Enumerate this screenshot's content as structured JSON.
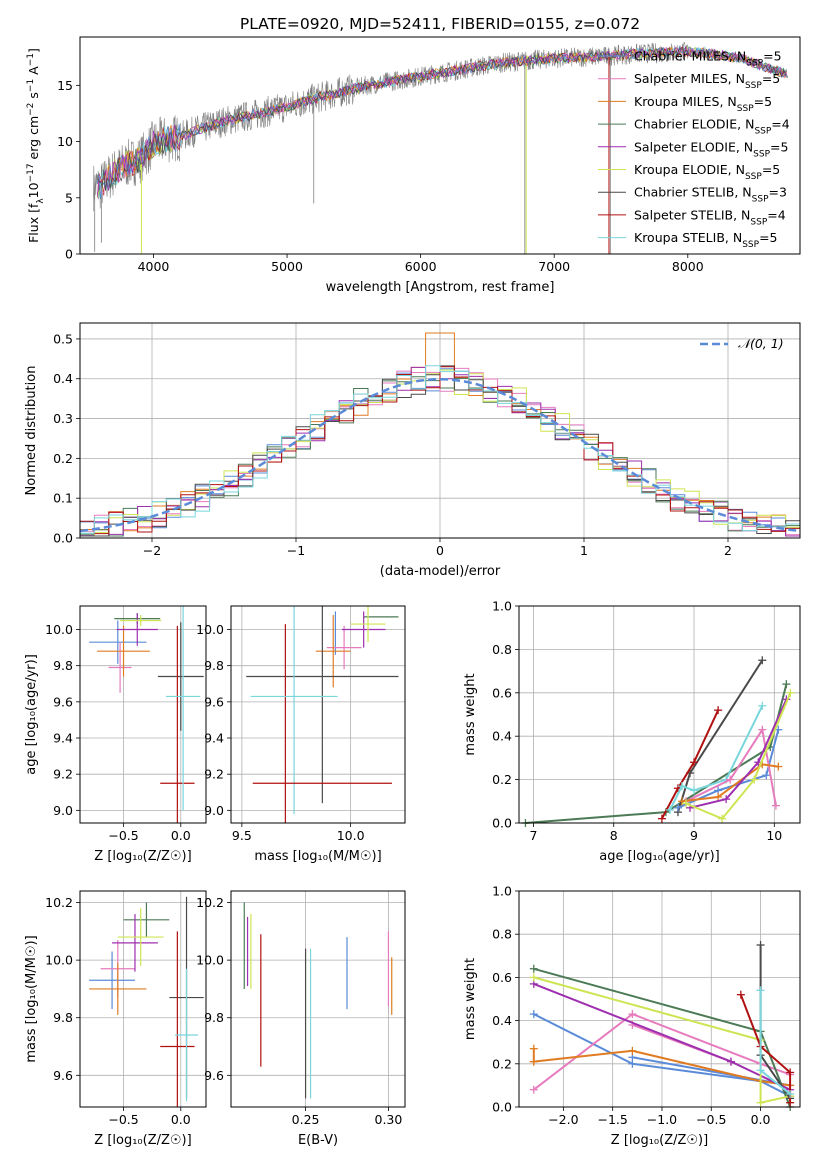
{
  "figure_title": "PLATE=0920, MJD=52411, FIBERID=0155, z=0.072",
  "colors": {
    "chabrier_miles": "#5b8bd8",
    "salpeter_miles": "#e67bbd",
    "kroupa_miles": "#e07b22",
    "chabrier_elodie": "#4b7a55",
    "salpeter_elodie": "#9e2fae",
    "kroupa_elodie": "#cfe452",
    "chabrier_stelib": "#4a4a4a",
    "salpeter_stelib": "#b01010",
    "kroupa_stelib": "#78d6dc",
    "data": "#7f7f7f",
    "normal_curve": "#5b8bd8"
  },
  "chart_data": [
    {
      "id": "spectrum",
      "type": "line",
      "xlabel": "wavelength [Angstrom, rest frame]",
      "ylabel_parts": [
        "Flux [f",
        "λ",
        "10",
        "−17",
        " erg cm",
        "−2",
        " s",
        "−1",
        " A",
        "−1",
        "]"
      ],
      "xlim": [
        3450,
        8840
      ],
      "ylim": [
        0,
        19.3
      ],
      "xticks": [
        4000,
        5000,
        6000,
        7000,
        8000
      ],
      "yticks": [
        0,
        5,
        10,
        15
      ],
      "continuum": {
        "x": [
          3550,
          3600,
          3700,
          3800,
          3900,
          4000,
          4100,
          4200,
          4300,
          4400,
          4500,
          4600,
          4800,
          5000,
          5200,
          5400,
          5600,
          5800,
          6000,
          6200,
          6400,
          6600,
          6800,
          7000,
          7200,
          7400,
          7600,
          7800,
          8000,
          8200,
          8400,
          8600,
          8750
        ],
        "y": [
          6.0,
          6.0,
          7.2,
          8.0,
          8.4,
          9.8,
          10.2,
          10.4,
          10.9,
          11.3,
          11.7,
          12.0,
          12.5,
          13.1,
          13.8,
          14.4,
          15.0,
          15.4,
          15.8,
          16.2,
          16.6,
          17.0,
          17.2,
          17.4,
          17.5,
          17.6,
          17.8,
          17.9,
          18.0,
          17.8,
          17.4,
          16.5,
          16.0
        ]
      },
      "legend": [
        {
          "label": "Chabrier MILES, N",
          "sub": "SSP",
          "tail": "=5",
          "color_key": "chabrier_miles"
        },
        {
          "label": "Salpeter MILES, N",
          "sub": "SSP",
          "tail": "=5",
          "color_key": "salpeter_miles"
        },
        {
          "label": "Kroupa MILES, N",
          "sub": "SSP",
          "tail": "=5",
          "color_key": "kroupa_miles"
        },
        {
          "label": "Chabrier ELODIE, N",
          "sub": "SSP",
          "tail": "=4",
          "color_key": "chabrier_elodie"
        },
        {
          "label": "Salpeter ELODIE, N",
          "sub": "SSP",
          "tail": "=5",
          "color_key": "salpeter_elodie"
        },
        {
          "label": "Kroupa ELODIE, N",
          "sub": "SSP",
          "tail": "=5",
          "color_key": "kroupa_elodie"
        },
        {
          "label": "Chabrier STELIB, N",
          "sub": "SSP",
          "tail": "=3",
          "color_key": "chabrier_stelib"
        },
        {
          "label": "Salpeter STELIB, N",
          "sub": "SSP",
          "tail": "=4",
          "color_key": "salpeter_stelib"
        },
        {
          "label": "Kroupa STELIB, N",
          "sub": "SSP",
          "tail": "=5",
          "color_key": "kroupa_stelib"
        }
      ]
    },
    {
      "id": "residuals",
      "type": "line",
      "xlabel": "(data-model)/error",
      "ylabel": "Normed distribution",
      "xlim": [
        -2.5,
        2.5
      ],
      "ylim": [
        0,
        0.54
      ],
      "xticks": [
        -2,
        -1,
        0,
        1,
        2
      ],
      "yticks": [
        0.0,
        0.1,
        0.2,
        0.3,
        0.4,
        0.5
      ],
      "grid": true,
      "legend": [
        {
          "label": "𝒩(0, 1)",
          "color_key": "normal_curve",
          "style": "dashed"
        }
      ],
      "bin_width": 0.1
    },
    {
      "id": "age_vs_Z",
      "type": "scatter",
      "xlabel": "Z [log₁₀(Z/Z☉)]",
      "ylabel": "age  [log₁₀(age/yr)]",
      "xlim": [
        -0.88,
        0.22
      ],
      "ylim": [
        8.93,
        10.13
      ],
      "xticks": [
        -0.5,
        0.0
      ],
      "yticks": [
        9.0,
        9.2,
        9.4,
        9.6,
        9.8,
        10.0
      ],
      "grid": true,
      "points": [
        {
          "color_key": "chabrier_miles",
          "x": -0.55,
          "xerr": 0.25,
          "y": 9.93,
          "yerr": 0.12
        },
        {
          "color_key": "salpeter_miles",
          "x": -0.53,
          "xerr": 0.1,
          "y": 9.79,
          "yerr": 0.14
        },
        {
          "color_key": "kroupa_miles",
          "x": -0.5,
          "xerr": 0.23,
          "y": 9.88,
          "yerr": 0.14
        },
        {
          "color_key": "chabrier_elodie",
          "x": -0.38,
          "xerr": 0.2,
          "y": 10.06,
          "yerr": 0.03
        },
        {
          "color_key": "salpeter_elodie",
          "x": -0.38,
          "xerr": 0.18,
          "y": 10.0,
          "yerr": 0.09
        },
        {
          "color_key": "kroupa_elodie",
          "x": -0.35,
          "xerr": 0.18,
          "y": 10.05,
          "yerr": 0.03
        },
        {
          "color_key": "chabrier_stelib",
          "x": 0.0,
          "xerr": 0.2,
          "y": 9.74,
          "yerr": 0.3
        },
        {
          "color_key": "salpeter_stelib",
          "x": -0.03,
          "xerr": 0.15,
          "y": 9.15,
          "yerr": 0.87
        },
        {
          "color_key": "kroupa_stelib",
          "x": 0.02,
          "xerr": 0.15,
          "y": 9.63,
          "yerr": 0.63
        }
      ]
    },
    {
      "id": "age_vs_mass",
      "type": "scatter",
      "xlabel": "mass [log₁₀(M/M☉)]",
      "xlim": [
        9.45,
        10.25
      ],
      "ylim": [
        8.93,
        10.13
      ],
      "xticks": [
        9.5,
        10.0
      ],
      "yticks": [
        9.0,
        9.2,
        9.4,
        9.6,
        9.8,
        10.0
      ],
      "grid": true,
      "points": [
        {
          "color_key": "chabrier_miles",
          "x": 9.93,
          "xerr": 0.0,
          "y": 9.98,
          "yerr": 0.12
        },
        {
          "color_key": "salpeter_miles",
          "x": 9.97,
          "xerr": 0.08,
          "y": 9.9,
          "yerr": 0.12
        },
        {
          "color_key": "kroupa_miles",
          "x": 9.92,
          "xerr": 0.08,
          "y": 9.88,
          "yerr": 0.2
        },
        {
          "color_key": "chabrier_elodie",
          "x": 10.14,
          "xerr": 0.08,
          "y": 10.07,
          "yerr": 0.0
        },
        {
          "color_key": "salpeter_elodie",
          "x": 10.06,
          "xerr": 0.1,
          "y": 10.0,
          "yerr": 0.1
        },
        {
          "color_key": "kroupa_elodie",
          "x": 10.08,
          "xerr": 0.08,
          "y": 10.03,
          "yerr": 0.1
        },
        {
          "color_key": "chabrier_stelib",
          "x": 9.87,
          "xerr": 0.35,
          "y": 9.74,
          "yerr": 0.7
        },
        {
          "color_key": "salpeter_stelib",
          "x": 9.7,
          "xerr": 0.0,
          "y": 9.15,
          "yerr": 0.88
        },
        {
          "color_key": "kroupa_stelib",
          "x": 9.74,
          "xerr": 0.2,
          "y": 9.63,
          "yerr": 0.65
        },
        {
          "color_key": "salpeter_stelib",
          "x": 9.87,
          "xerr": 0.32,
          "y": 9.15,
          "yerr": 0.0
        }
      ]
    },
    {
      "id": "weight_vs_age",
      "type": "line",
      "xlabel": "age  [log₁₀(age/yr)]",
      "ylabel": "mass weight",
      "xlim": [
        6.82,
        10.32
      ],
      "ylim": [
        0,
        1.0
      ],
      "xticks": [
        7,
        8,
        9,
        10
      ],
      "yticks": [
        0.0,
        0.2,
        0.4,
        0.6,
        0.8,
        1.0
      ],
      "grid": true,
      "series": [
        {
          "color_key": "chabrier_elodie",
          "x": [
            6.9,
            8.65,
            9.95,
            10.15
          ],
          "y": [
            0.0,
            0.05,
            0.35,
            0.64
          ]
        },
        {
          "color_key": "chabrier_stelib",
          "x": [
            8.8,
            8.95,
            9.85
          ],
          "y": [
            0.05,
            0.23,
            0.75
          ]
        },
        {
          "color_key": "salpeter_stelib",
          "x": [
            8.6,
            8.8,
            9.0,
            9.3
          ],
          "y": [
            0.02,
            0.16,
            0.28,
            0.52
          ]
        },
        {
          "color_key": "kroupa_stelib",
          "x": [
            8.7,
            8.85,
            9.0,
            9.4,
            9.85
          ],
          "y": [
            0.06,
            0.17,
            0.15,
            0.2,
            0.54
          ]
        },
        {
          "color_key": "chabrier_miles",
          "x": [
            8.8,
            9.3,
            9.9,
            10.05
          ],
          "y": [
            0.07,
            0.15,
            0.22,
            0.43
          ]
        },
        {
          "color_key": "salpeter_miles",
          "x": [
            8.9,
            9.45,
            9.85,
            10.02
          ],
          "y": [
            0.1,
            0.2,
            0.43,
            0.08
          ]
        },
        {
          "color_key": "kroupa_miles",
          "x": [
            8.85,
            9.3,
            9.85,
            10.05
          ],
          "y": [
            0.1,
            0.12,
            0.27,
            0.26
          ]
        },
        {
          "color_key": "salpeter_elodie",
          "x": [
            8.95,
            9.4,
            9.8,
            10.15
          ],
          "y": [
            0.07,
            0.11,
            0.28,
            0.57
          ]
        },
        {
          "color_key": "kroupa_elodie",
          "x": [
            8.9,
            9.35,
            9.75,
            10.2
          ],
          "y": [
            0.09,
            0.02,
            0.2,
            0.6
          ]
        }
      ]
    },
    {
      "id": "mass_vs_Z",
      "type": "scatter",
      "xlabel": "Z [log₁₀(Z/Z☉)]",
      "ylabel": "mass [log₁₀(M/M☉)]",
      "xlim": [
        -0.88,
        0.22
      ],
      "ylim": [
        9.49,
        10.24
      ],
      "xticks": [
        -0.5,
        0.0
      ],
      "yticks": [
        9.6,
        9.8,
        10.0,
        10.2
      ],
      "grid": true,
      "points": [
        {
          "color_key": "chabrier_miles",
          "x": -0.6,
          "xerr": 0.2,
          "y": 9.93,
          "yerr": 0.1
        },
        {
          "color_key": "salpeter_miles",
          "x": -0.55,
          "xerr": 0.15,
          "y": 9.97,
          "yerr": 0.1
        },
        {
          "color_key": "kroupa_miles",
          "x": -0.55,
          "xerr": 0.25,
          "y": 9.9,
          "yerr": 0.09
        },
        {
          "color_key": "chabrier_elodie",
          "x": -0.3,
          "xerr": 0.2,
          "y": 10.14,
          "yerr": 0.06
        },
        {
          "color_key": "salpeter_elodie",
          "x": -0.4,
          "xerr": 0.2,
          "y": 10.06,
          "yerr": 0.1
        },
        {
          "color_key": "kroupa_elodie",
          "x": -0.35,
          "xerr": 0.2,
          "y": 10.08,
          "yerr": 0.1
        },
        {
          "color_key": "chabrier_stelib",
          "x": 0.05,
          "xerr": 0.15,
          "y": 9.87,
          "yerr": 0.35
        },
        {
          "color_key": "salpeter_stelib",
          "x": -0.03,
          "xerr": 0.15,
          "y": 9.7,
          "yerr": 0.4
        },
        {
          "color_key": "kroupa_stelib",
          "x": 0.05,
          "xerr": 0.1,
          "y": 9.74,
          "yerr": 0.23
        }
      ]
    },
    {
      "id": "mass_vs_ebv",
      "type": "scatter",
      "xlabel": "E(B-V)",
      "xlim": [
        0.205,
        0.31
      ],
      "ylim": [
        9.49,
        10.24
      ],
      "xticks": [
        0.25,
        0.3
      ],
      "yticks": [
        9.6,
        9.8,
        10.0,
        10.2
      ],
      "grid": true,
      "points": [
        {
          "color_key": "chabrier_miles",
          "x": 0.275,
          "xerr": 0.0,
          "y": 9.955,
          "yerr": 0.125
        },
        {
          "color_key": "salpeter_miles",
          "x": 0.3,
          "xerr": 0.0,
          "y": 9.97,
          "yerr": 0.13
        },
        {
          "color_key": "kroupa_miles",
          "x": 0.302,
          "xerr": 0.0,
          "y": 9.91,
          "yerr": 0.1
        },
        {
          "color_key": "chabrier_elodie",
          "x": 0.213,
          "xerr": 0.0,
          "y": 10.05,
          "yerr": 0.15
        },
        {
          "color_key": "salpeter_elodie",
          "x": 0.215,
          "xerr": 0.0,
          "y": 10.03,
          "yerr": 0.12
        },
        {
          "color_key": "kroupa_elodie",
          "x": 0.217,
          "xerr": 0.0,
          "y": 10.03,
          "yerr": 0.13
        },
        {
          "color_key": "chabrier_stelib",
          "x": 0.25,
          "xerr": 0.0,
          "y": 9.78,
          "yerr": 0.26
        },
        {
          "color_key": "salpeter_stelib",
          "x": 0.223,
          "xerr": 0.0,
          "y": 9.86,
          "yerr": 0.23
        },
        {
          "color_key": "kroupa_stelib",
          "x": 0.253,
          "xerr": 0.0,
          "y": 9.78,
          "yerr": 0.26
        }
      ]
    },
    {
      "id": "weight_vs_Z",
      "type": "line",
      "xlabel": "Z [log₁₀(Z/Z☉)]",
      "ylabel": "mass weight",
      "xlim": [
        -2.45,
        0.4
      ],
      "ylim": [
        0,
        1.0
      ],
      "xticks": [
        -2.0,
        -1.5,
        -1.0,
        -0.5,
        0.0
      ],
      "yticks": [
        0.0,
        0.2,
        0.4,
        0.6,
        0.8,
        1.0
      ],
      "grid": true,
      "series": [
        {
          "color_key": "chabrier_miles",
          "x": [
            -2.3,
            -1.3,
            0.0,
            0.3
          ],
          "y": [
            0.43,
            0.2,
            0.12,
            0.05
          ]
        },
        {
          "color_key": "chabrier_miles",
          "x": [
            -1.3,
            0.3
          ],
          "y": [
            0.23,
            0.1
          ]
        },
        {
          "color_key": "salpeter_miles",
          "x": [
            -2.3,
            -1.3,
            0.0,
            0.3
          ],
          "y": [
            0.08,
            0.43,
            0.2,
            0.15
          ]
        },
        {
          "color_key": "salpeter_miles",
          "x": [
            -1.3,
            -0.3
          ],
          "y": [
            0.38,
            0.21
          ]
        },
        {
          "color_key": "kroupa_miles",
          "x": [
            -2.3,
            -1.3,
            0.0,
            0.3
          ],
          "y": [
            0.21,
            0.26,
            0.12,
            0.1
          ]
        },
        {
          "color_key": "kroupa_miles",
          "x": [
            -2.3,
            -2.3
          ],
          "y": [
            0.27,
            0.21
          ]
        },
        {
          "color_key": "chabrier_elodie",
          "x": [
            -2.3,
            0.0,
            0.3
          ],
          "y": [
            0.64,
            0.35,
            0.0
          ]
        },
        {
          "color_key": "salpeter_elodie",
          "x": [
            -2.3,
            -0.3,
            0.3
          ],
          "y": [
            0.57,
            0.21,
            0.08
          ]
        },
        {
          "color_key": "kroupa_elodie",
          "x": [
            -2.3,
            0.0,
            0.0,
            0.3
          ],
          "y": [
            0.6,
            0.31,
            0.02,
            0.05
          ]
        },
        {
          "color_key": "chabrier_stelib",
          "x": [
            0.0,
            0.0,
            0.3
          ],
          "y": [
            0.75,
            0.24,
            0.04
          ]
        },
        {
          "color_key": "salpeter_stelib",
          "x": [
            -0.2,
            0.0,
            0.3,
            0.3
          ],
          "y": [
            0.52,
            0.28,
            0.16,
            0.02
          ]
        },
        {
          "color_key": "kroupa_stelib",
          "x": [
            0.0,
            0.0,
            0.3
          ],
          "y": [
            0.54,
            0.17,
            0.06
          ]
        }
      ]
    }
  ]
}
